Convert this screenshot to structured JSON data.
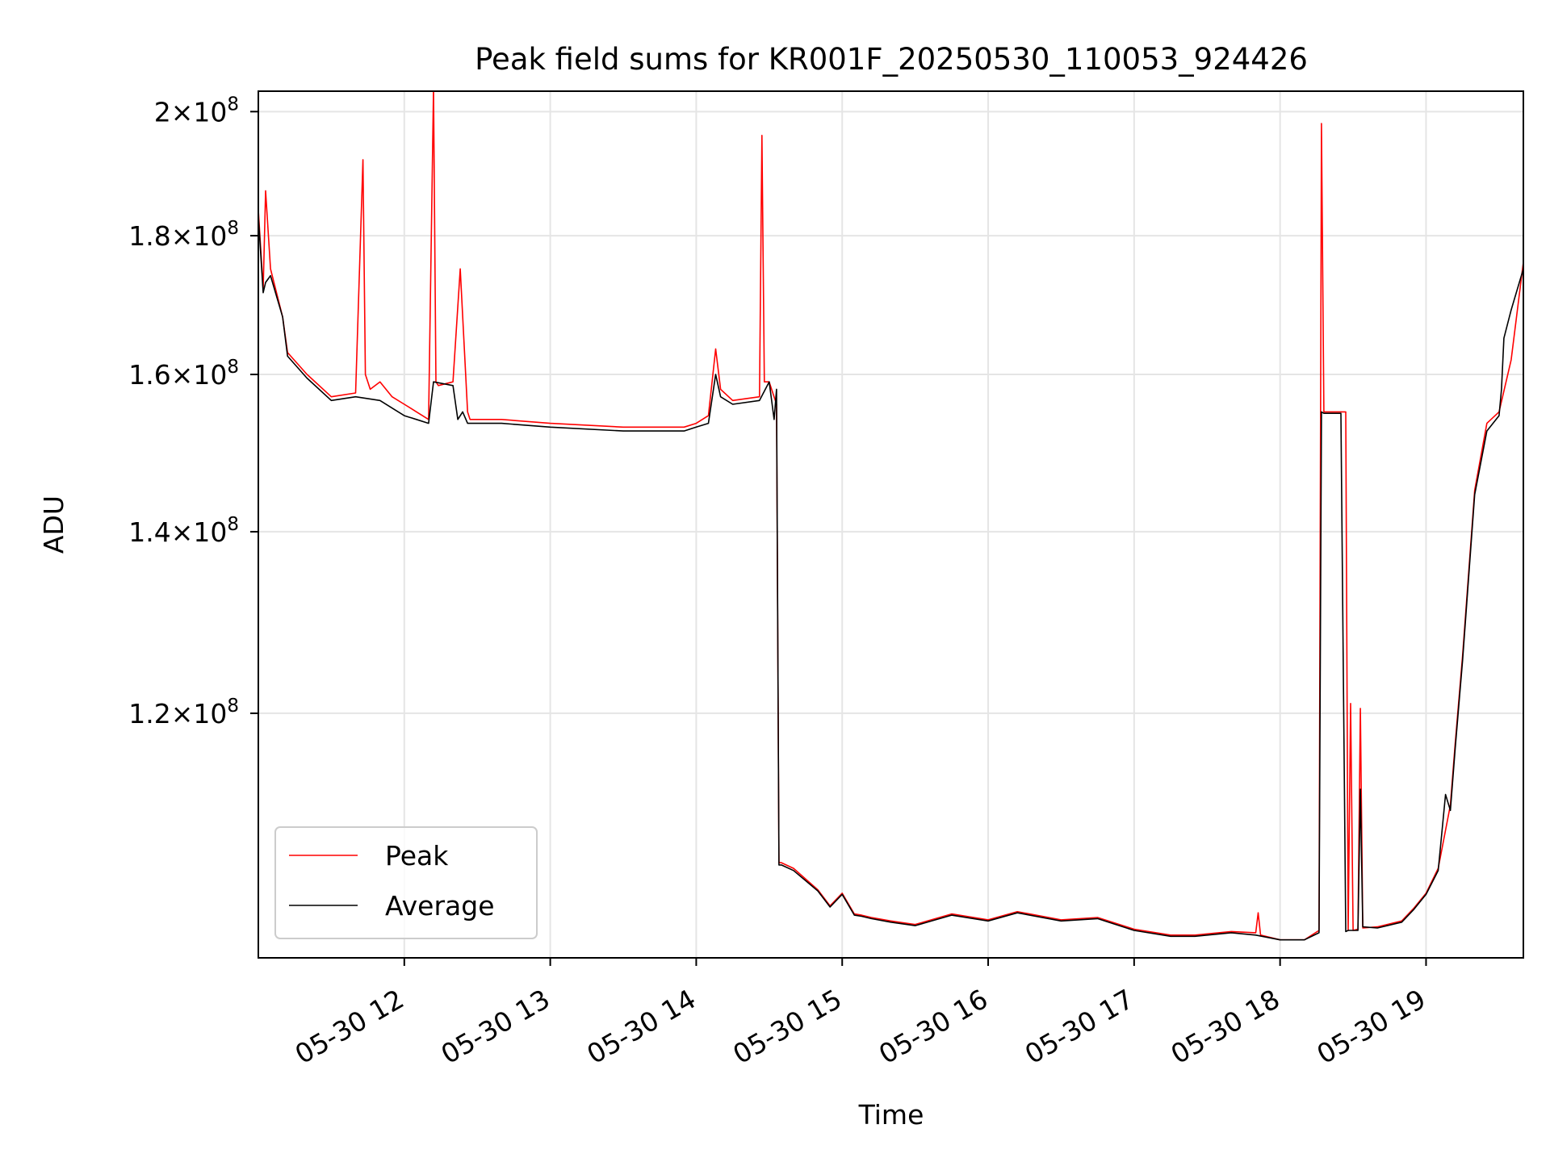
{
  "chart_data": {
    "type": "line",
    "title": "Peak field sums for KR001F_20250530_110053_924426",
    "xlabel": "Time",
    "ylabel": "ADU",
    "yscale": "log",
    "xlim": [
      "2025-05-30 11:00",
      "2025-05-30 19:40"
    ],
    "ylim": [
      97500000,
      203500000
    ],
    "x_tick_labels": [
      "05-30 12",
      "05-30 13",
      "05-30 14",
      "05-30 15",
      "05-30 16",
      "05-30 17",
      "05-30 18",
      "05-30 19"
    ],
    "x_tick_positions": [
      "2025-05-30 12:00",
      "2025-05-30 13:00",
      "2025-05-30 14:00",
      "2025-05-30 15:00",
      "2025-05-30 16:00",
      "2025-05-30 17:00",
      "2025-05-30 18:00",
      "2025-05-30 19:00"
    ],
    "y_ticks": [
      {
        "value": 120000000,
        "mantissa": "1.2",
        "exponent": "8"
      },
      {
        "value": 140000000,
        "mantissa": "1.4",
        "exponent": "8"
      },
      {
        "value": 160000000,
        "mantissa": "1.6",
        "exponent": "8"
      },
      {
        "value": 180000000,
        "mantissa": "1.8",
        "exponent": "8"
      },
      {
        "value": 200000000,
        "mantissa": "2",
        "exponent": "8"
      }
    ],
    "tick_times_label": "×10",
    "grid": true,
    "legend_position": "lower-left",
    "series": [
      {
        "name": "Peak",
        "color": "#ff0000",
        "x": [
          "2025-05-30 11:00",
          "2025-05-30 11:02",
          "2025-05-30 11:03",
          "2025-05-30 11:05",
          "2025-05-30 11:10",
          "2025-05-30 11:12",
          "2025-05-30 11:20",
          "2025-05-30 11:30",
          "2025-05-30 11:40",
          "2025-05-30 11:43",
          "2025-05-30 11:44",
          "2025-05-30 11:46",
          "2025-05-30 11:50",
          "2025-05-30 11:55",
          "2025-05-30 12:00",
          "2025-05-30 12:05",
          "2025-05-30 12:10",
          "2025-05-30 12:12",
          "2025-05-30 12:13",
          "2025-05-30 12:14",
          "2025-05-30 12:20",
          "2025-05-30 12:23",
          "2025-05-30 12:26",
          "2025-05-30 12:27",
          "2025-05-30 12:28",
          "2025-05-30 12:40",
          "2025-05-30 13:00",
          "2025-05-30 13:30",
          "2025-05-30 13:55",
          "2025-05-30 14:00",
          "2025-05-30 14:05",
          "2025-05-30 14:08",
          "2025-05-30 14:10",
          "2025-05-30 14:15",
          "2025-05-30 14:26",
          "2025-05-30 14:27",
          "2025-05-30 14:28",
          "2025-05-30 14:30",
          "2025-05-30 14:33",
          "2025-05-30 14:34",
          "2025-05-30 14:35",
          "2025-05-30 14:40",
          "2025-05-30 14:50",
          "2025-05-30 14:55",
          "2025-05-30 15:00",
          "2025-05-30 15:05",
          "2025-05-30 15:08",
          "2025-05-30 15:12",
          "2025-05-30 15:20",
          "2025-05-30 15:30",
          "2025-05-30 15:45",
          "2025-05-30 16:00",
          "2025-05-30 16:12",
          "2025-05-30 16:30",
          "2025-05-30 16:45",
          "2025-05-30 17:00",
          "2025-05-30 17:15",
          "2025-05-30 17:25",
          "2025-05-30 17:40",
          "2025-05-30 17:50",
          "2025-05-30 17:51",
          "2025-05-30 17:52",
          "2025-05-30 18:00",
          "2025-05-30 18:10",
          "2025-05-30 18:16",
          "2025-05-30 18:17",
          "2025-05-30 18:18",
          "2025-05-30 18:25",
          "2025-05-30 18:27",
          "2025-05-30 18:28",
          "2025-05-30 18:29",
          "2025-05-30 18:30",
          "2025-05-30 18:32",
          "2025-05-30 18:33",
          "2025-05-30 18:34",
          "2025-05-30 18:40",
          "2025-05-30 18:50",
          "2025-05-30 18:55",
          "2025-05-30 19:00",
          "2025-05-30 19:05",
          "2025-05-30 19:10",
          "2025-05-30 19:12",
          "2025-05-30 19:15",
          "2025-05-30 19:20",
          "2025-05-30 19:25",
          "2025-05-30 19:30",
          "2025-05-30 19:35",
          "2025-05-30 19:40"
        ],
        "values": [
          184000000,
          172000000,
          187000000,
          175000000,
          168000000,
          163000000,
          160000000,
          157000000,
          157500000,
          192000000,
          160000000,
          158000000,
          159000000,
          157000000,
          156000000,
          155000000,
          154000000,
          204000000,
          159000000,
          158500000,
          159000000,
          175000000,
          155000000,
          154000000,
          154000000,
          154000000,
          153500000,
          153000000,
          153000000,
          153500000,
          154500000,
          163500000,
          158000000,
          156500000,
          157000000,
          196000000,
          159000000,
          159000000,
          156000000,
          105700000,
          105700000,
          105200000,
          103300000,
          101900000,
          103000000,
          101200000,
          101100000,
          100900000,
          100600000,
          100300000,
          101200000,
          100700000,
          101400000,
          100700000,
          100900000,
          99900000,
          99400000,
          99400000,
          99700000,
          99600000,
          101300000,
          99400000,
          99000000,
          99000000,
          99800000,
          198000000,
          155000000,
          155000000,
          155000000,
          99800000,
          121000000,
          99800000,
          99900000,
          120500000,
          100000000,
          100100000,
          100600000,
          101700000,
          103000000,
          105200000,
          111000000,
          117000000,
          126000000,
          145000000,
          153500000,
          155000000,
          162000000,
          176000000
        ]
      },
      {
        "name": "Average",
        "color": "#000000",
        "x": [
          "2025-05-30 11:00",
          "2025-05-30 11:02",
          "2025-05-30 11:03",
          "2025-05-30 11:05",
          "2025-05-30 11:10",
          "2025-05-30 11:12",
          "2025-05-30 11:20",
          "2025-05-30 11:30",
          "2025-05-30 11:40",
          "2025-05-30 11:50",
          "2025-05-30 11:55",
          "2025-05-30 12:00",
          "2025-05-30 12:05",
          "2025-05-30 12:10",
          "2025-05-30 12:12",
          "2025-05-30 12:20",
          "2025-05-30 12:22",
          "2025-05-30 12:24",
          "2025-05-30 12:26",
          "2025-05-30 12:40",
          "2025-05-30 13:00",
          "2025-05-30 13:30",
          "2025-05-30 13:55",
          "2025-05-30 14:00",
          "2025-05-30 14:05",
          "2025-05-30 14:08",
          "2025-05-30 14:10",
          "2025-05-30 14:15",
          "2025-05-30 14:26",
          "2025-05-30 14:30",
          "2025-05-30 14:32",
          "2025-05-30 14:33",
          "2025-05-30 14:34",
          "2025-05-30 14:35",
          "2025-05-30 14:40",
          "2025-05-30 14:50",
          "2025-05-30 14:55",
          "2025-05-30 15:00",
          "2025-05-30 15:05",
          "2025-05-30 15:08",
          "2025-05-30 15:12",
          "2025-05-30 15:20",
          "2025-05-30 15:30",
          "2025-05-30 15:45",
          "2025-05-30 16:00",
          "2025-05-30 16:12",
          "2025-05-30 16:30",
          "2025-05-30 16:45",
          "2025-05-30 17:00",
          "2025-05-30 17:15",
          "2025-05-30 17:25",
          "2025-05-30 17:40",
          "2025-05-30 17:50",
          "2025-05-30 18:00",
          "2025-05-30 18:10",
          "2025-05-30 18:16",
          "2025-05-30 18:17",
          "2025-05-30 18:18",
          "2025-05-30 18:25",
          "2025-05-30 18:27",
          "2025-05-30 18:28",
          "2025-05-30 18:30",
          "2025-05-30 18:32",
          "2025-05-30 18:33",
          "2025-05-30 18:34",
          "2025-05-30 18:40",
          "2025-05-30 18:50",
          "2025-05-30 18:55",
          "2025-05-30 19:00",
          "2025-05-30 19:05",
          "2025-05-30 19:08",
          "2025-05-30 19:10",
          "2025-05-30 19:12",
          "2025-05-30 19:15",
          "2025-05-30 19:20",
          "2025-05-30 19:25",
          "2025-05-30 19:30",
          "2025-05-30 19:31",
          "2025-05-30 19:32",
          "2025-05-30 19:35",
          "2025-05-30 19:40"
        ],
        "values": [
          183000000,
          171500000,
          173000000,
          174000000,
          168000000,
          162500000,
          159500000,
          156500000,
          157000000,
          156500000,
          155500000,
          154500000,
          154000000,
          153500000,
          159000000,
          158500000,
          154000000,
          155000000,
          153500000,
          153500000,
          153000000,
          152500000,
          152500000,
          153000000,
          153500000,
          160000000,
          157000000,
          156000000,
          156500000,
          159000000,
          154000000,
          158000000,
          105500000,
          105500000,
          105000000,
          103200000,
          101800000,
          102900000,
          101100000,
          101000000,
          100800000,
          100500000,
          100200000,
          101100000,
          100600000,
          101300000,
          100600000,
          100800000,
          99800000,
          99300000,
          99300000,
          99600000,
          99400000,
          99000000,
          99000000,
          99600000,
          155000000,
          154800000,
          154800000,
          99700000,
          99800000,
          99800000,
          99800000,
          112500000,
          100100000,
          100000000,
          100500000,
          101600000,
          102900000,
          105000000,
          112000000,
          110500000,
          116500000,
          125500000,
          144500000,
          152500000,
          154500000,
          158000000,
          165000000,
          169000000,
          175000000
        ]
      }
    ]
  }
}
